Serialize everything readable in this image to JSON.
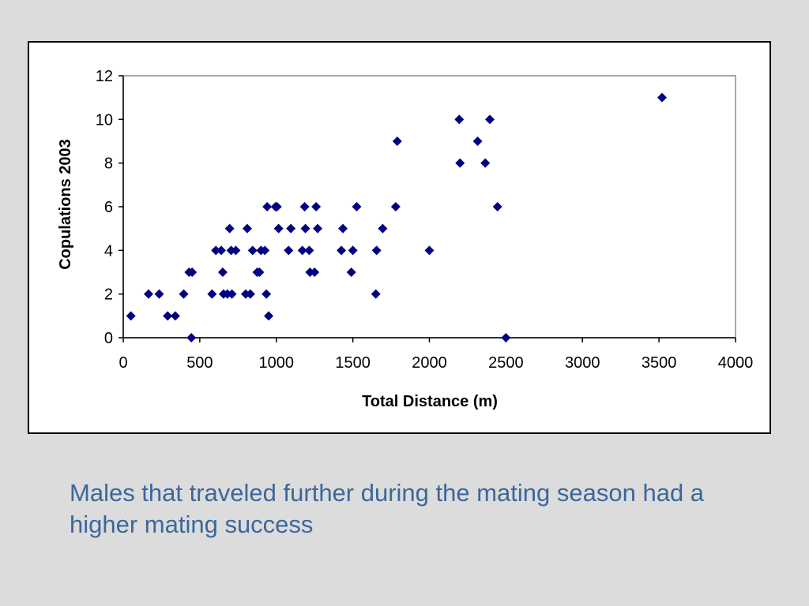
{
  "chart_data": {
    "type": "scatter",
    "title": "",
    "xlabel": "Total Distance (m)",
    "ylabel": "Copulations 2003",
    "xlim": [
      0,
      4000
    ],
    "ylim": [
      0,
      12
    ],
    "x_ticks": [
      "0",
      "500",
      "1000",
      "1500",
      "2000",
      "2500",
      "3000",
      "3500",
      "4000"
    ],
    "y_ticks": [
      "0",
      "2",
      "4",
      "6",
      "8",
      "10",
      "12"
    ],
    "grid": false,
    "legend": "none",
    "marker": "diamond",
    "series": [
      {
        "color": "#000080",
        "points": [
          [
            50,
            1
          ],
          [
            165,
            2
          ],
          [
            235,
            2
          ],
          [
            290,
            1
          ],
          [
            340,
            1
          ],
          [
            395,
            2
          ],
          [
            430,
            3
          ],
          [
            445,
            0
          ],
          [
            450,
            3
          ],
          [
            580,
            2
          ],
          [
            605,
            4
          ],
          [
            640,
            4
          ],
          [
            650,
            3
          ],
          [
            655,
            2
          ],
          [
            680,
            2
          ],
          [
            695,
            5
          ],
          [
            705,
            4
          ],
          [
            710,
            2
          ],
          [
            735,
            4
          ],
          [
            800,
            2
          ],
          [
            810,
            5
          ],
          [
            830,
            2
          ],
          [
            845,
            4
          ],
          [
            875,
            3
          ],
          [
            890,
            3
          ],
          [
            900,
            4
          ],
          [
            925,
            4
          ],
          [
            935,
            2
          ],
          [
            940,
            6
          ],
          [
            950,
            1
          ],
          [
            995,
            6
          ],
          [
            1005,
            6
          ],
          [
            1015,
            5
          ],
          [
            1080,
            4
          ],
          [
            1095,
            5
          ],
          [
            1170,
            4
          ],
          [
            1185,
            6
          ],
          [
            1190,
            5
          ],
          [
            1215,
            4
          ],
          [
            1220,
            3
          ],
          [
            1250,
            3
          ],
          [
            1260,
            6
          ],
          [
            1270,
            5
          ],
          [
            1425,
            4
          ],
          [
            1435,
            5
          ],
          [
            1490,
            3
          ],
          [
            1500,
            4
          ],
          [
            1525,
            6
          ],
          [
            1650,
            2
          ],
          [
            1655,
            4
          ],
          [
            1695,
            5
          ],
          [
            1780,
            6
          ],
          [
            1790,
            9
          ],
          [
            2000,
            4
          ],
          [
            2195,
            10
          ],
          [
            2200,
            8
          ],
          [
            2315,
            9
          ],
          [
            2365,
            8
          ],
          [
            2395,
            10
          ],
          [
            2445,
            6
          ],
          [
            2500,
            0
          ],
          [
            3520,
            11
          ]
        ]
      }
    ]
  },
  "caption": "Males that traveled further during the mating season had a higher mating success"
}
